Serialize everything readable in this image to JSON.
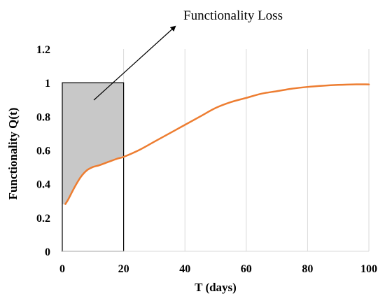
{
  "chart_data": {
    "type": "line",
    "title": "",
    "xlabel": "T (days)",
    "ylabel": "Functionality Q(t)",
    "xlim": [
      0,
      100
    ],
    "ylim": [
      0,
      1.2
    ],
    "xticks": [
      0,
      20,
      40,
      60,
      80,
      100
    ],
    "yticks": [
      0,
      0.2,
      0.4,
      0.6,
      0.8,
      1,
      1.2
    ],
    "ytick_labels": [
      "0",
      "0.2",
      "0.4",
      "0.6",
      "0.8",
      "1",
      "1.2"
    ],
    "xtick_labels": [
      "0",
      "20",
      "40",
      "60",
      "80",
      "100"
    ],
    "grid": "vertical",
    "series": [
      {
        "color": "#ED7D31",
        "x": [
          1,
          2,
          4,
          6,
          8,
          10,
          12,
          15,
          18,
          20,
          25,
          30,
          35,
          40,
          45,
          50,
          55,
          60,
          65,
          70,
          75,
          80,
          85,
          90,
          95,
          100
        ],
        "y": [
          0.28,
          0.31,
          0.38,
          0.44,
          0.48,
          0.5,
          0.51,
          0.53,
          0.55,
          0.56,
          0.6,
          0.65,
          0.7,
          0.75,
          0.8,
          0.85,
          0.885,
          0.91,
          0.935,
          0.95,
          0.965,
          0.975,
          0.982,
          0.987,
          0.99,
          0.99
        ]
      }
    ],
    "shaded_region": {
      "x_range": [
        0,
        20
      ],
      "top": 1,
      "fill": "#C8C8C8"
    },
    "annotations": [
      {
        "text": "Functionality Loss"
      }
    ]
  }
}
